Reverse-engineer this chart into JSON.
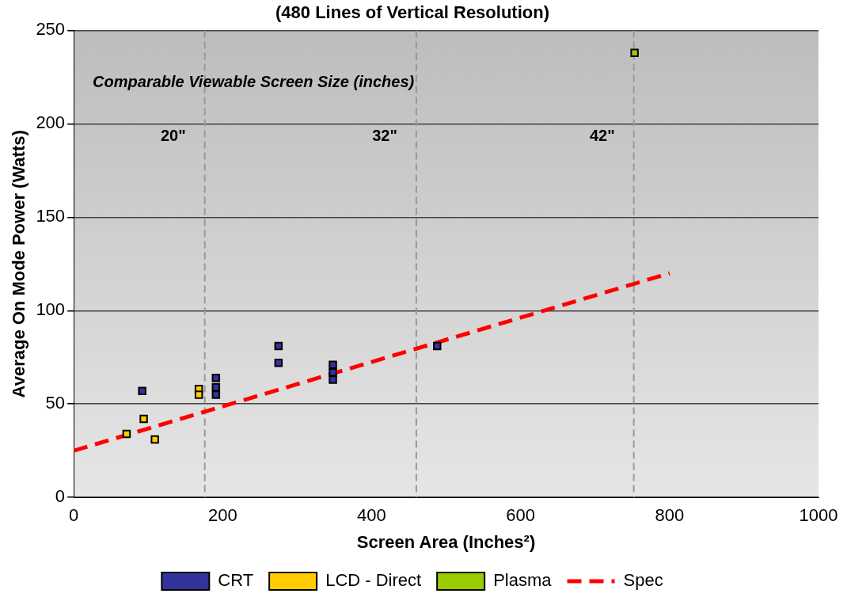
{
  "chart_data": {
    "type": "scatter",
    "title": "(480 Lines of Vertical Resolution)",
    "xlabel": "Screen Area (Inches²)",
    "ylabel": "Average On Mode Power (Watts)",
    "xlim": [
      0,
      1000
    ],
    "xticks": [
      0,
      200,
      400,
      600,
      800,
      1000
    ],
    "ylim": [
      0,
      250
    ],
    "yticks": [
      0,
      50,
      100,
      150,
      200,
      250
    ],
    "grid": "y",
    "legend": "bottom",
    "marker": "square",
    "series": [
      {
        "name": "CRT",
        "color": "#333399",
        "x": [
          92,
          191,
          191,
          191,
          275,
          275,
          348,
          348,
          348,
          488
        ],
        "values": [
          57,
          64,
          59,
          55,
          81,
          72,
          71,
          67,
          63,
          81
        ]
      },
      {
        "name": "LCD - Direct",
        "color": "#ffcc00",
        "x": [
          71,
          94,
          109,
          168,
          168
        ],
        "values": [
          34,
          42,
          31,
          58,
          55
        ]
      },
      {
        "name": "Plasma",
        "color": "#99cc00",
        "x": [
          753
        ],
        "values": [
          238
        ]
      },
      {
        "name": "Spec",
        "type": "line",
        "color": "#ff0000",
        "line_style": "dashed",
        "marker": "none",
        "x": [
          0,
          800
        ],
        "values": [
          25,
          120
        ]
      }
    ],
    "ref_lines": [
      {
        "axis": "x",
        "value": 176,
        "color": "#999999",
        "line_style": "dashed"
      },
      {
        "axis": "x",
        "value": 460,
        "color": "#999999",
        "line_style": "dashed"
      },
      {
        "axis": "x",
        "value": 752,
        "color": "#999999",
        "line_style": "dashed"
      }
    ],
    "annotations": [
      "Comparable Viewable Screen Size (inches)",
      "20\"",
      "32\"",
      "42\""
    ]
  }
}
